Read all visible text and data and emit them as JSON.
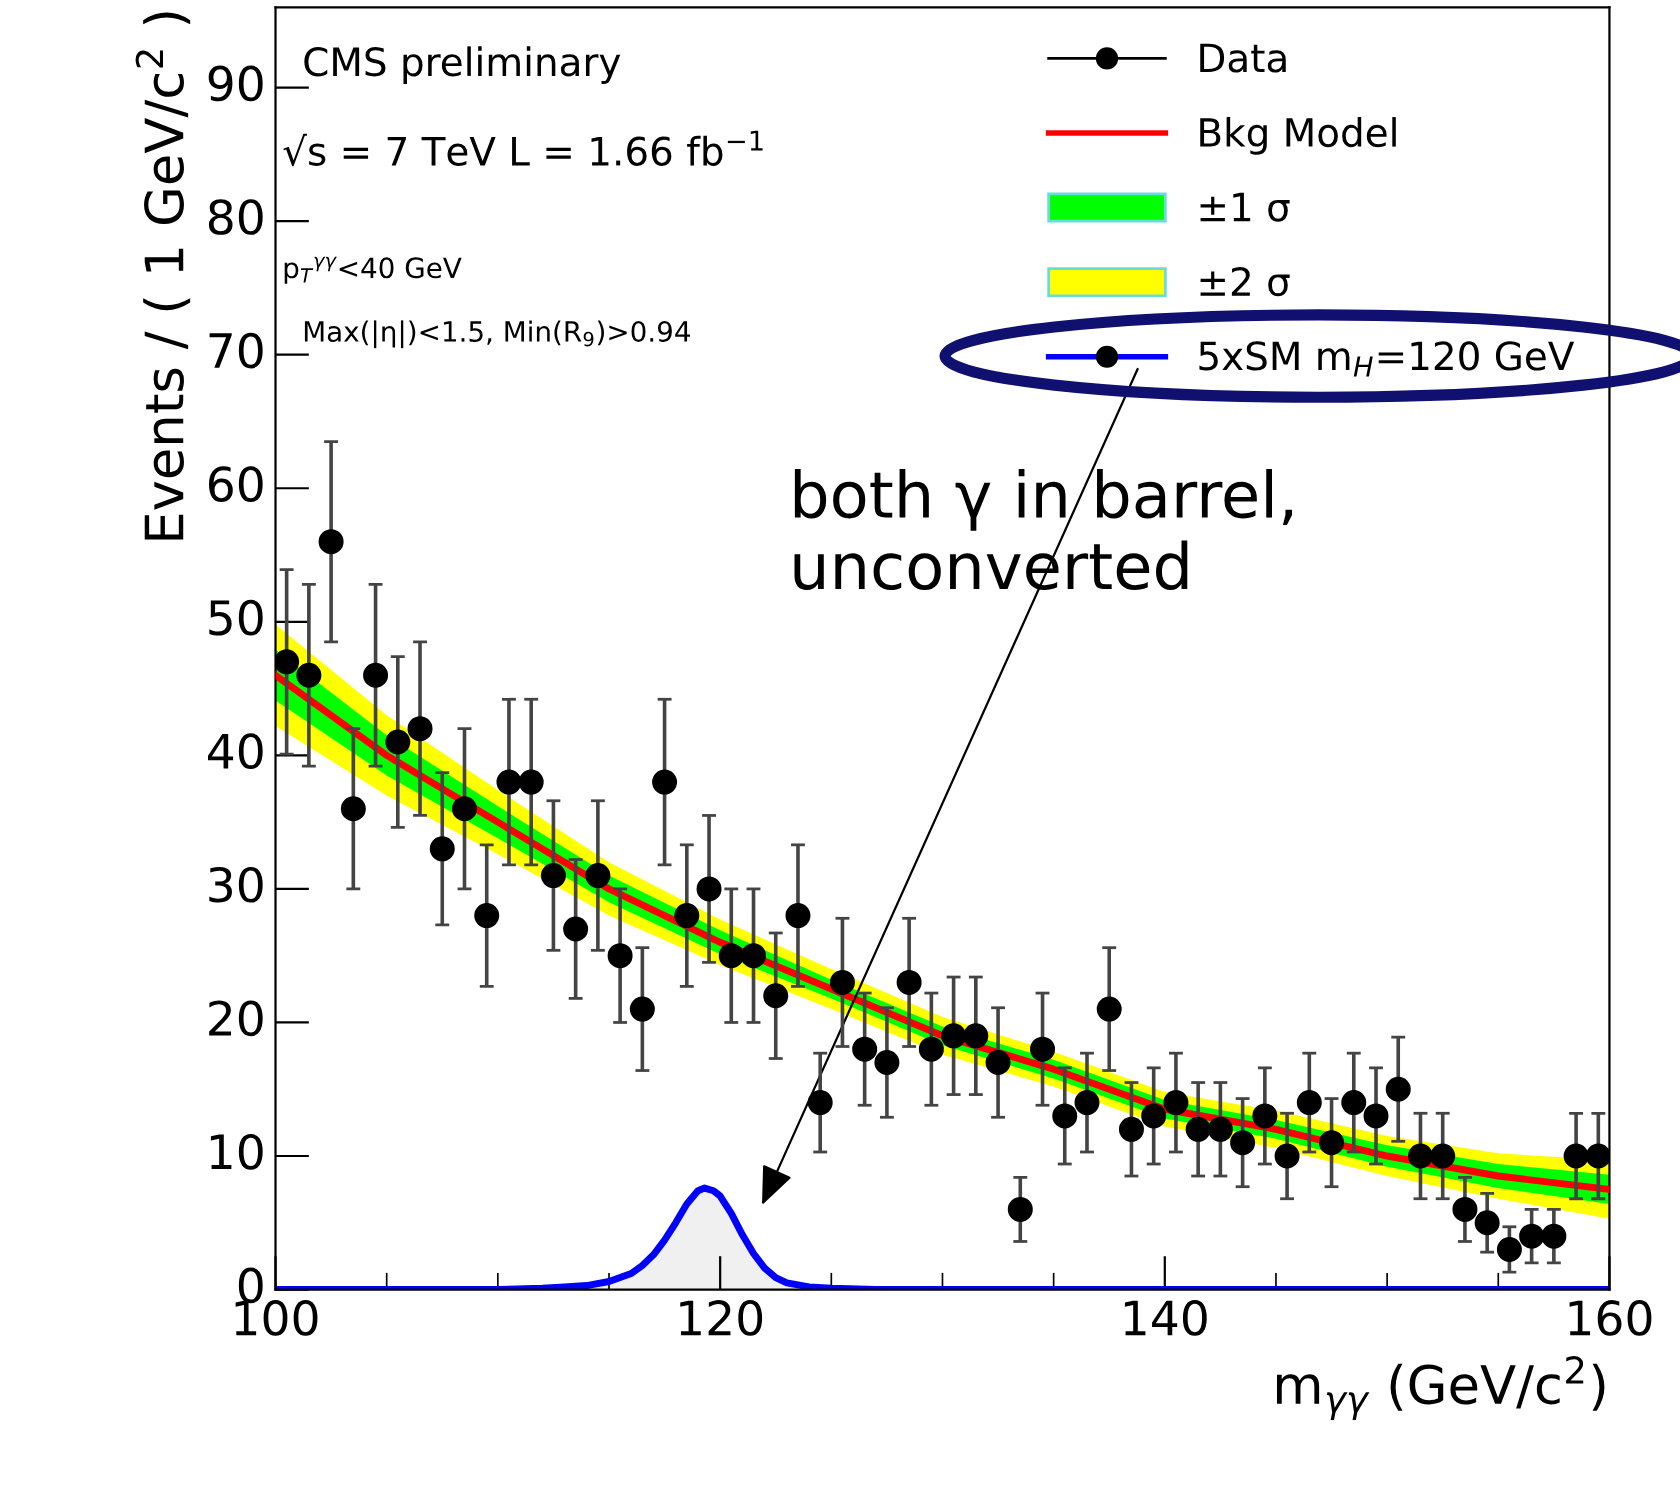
{
  "chart_data": {
    "type": "scatter",
    "xlabel": "m$_{γγ}$ (GeV/c$^{2}$)",
    "ylabel": "Events / ( 1 GeV/c$^{2}$ )",
    "xlim": [
      100,
      160
    ],
    "xticks": [
      100,
      120,
      140,
      160
    ],
    "ylim": [
      0,
      96
    ],
    "yticks": [
      0,
      10,
      20,
      30,
      40,
      50,
      60,
      70,
      80,
      90
    ],
    "grid": false,
    "legend": "top right",
    "series": [
      {
        "name": "±2 σ",
        "type": "line",
        "color": "#ffff00",
        "x": [
          100,
          105,
          110,
          115,
          120,
          125,
          130,
          135,
          140,
          145,
          150,
          155,
          160
        ],
        "values": [
          null,
          null,
          null,
          null,
          null,
          null,
          null,
          null,
          null,
          null,
          null,
          null,
          null
        ],
        "lower": [
          42.2,
          37.0,
          32.6,
          28.0,
          24.3,
          21.0,
          17.6,
          15.2,
          12.2,
          10.6,
          8.5,
          6.8,
          5.3
        ],
        "upper": [
          49.8,
          43.0,
          37.4,
          32.0,
          27.7,
          24.0,
          20.4,
          17.8,
          14.8,
          13.4,
          11.5,
          10.2,
          9.7
        ]
      },
      {
        "name": "±1 σ",
        "type": "line",
        "color": "#00ff00",
        "x": [
          100,
          105,
          110,
          115,
          120,
          125,
          130,
          135,
          140,
          145,
          150,
          155,
          160
        ],
        "values": [
          null,
          null,
          null,
          null,
          null,
          null,
          null,
          null,
          null,
          null,
          null,
          null,
          null
        ],
        "lower": [
          44.1,
          38.5,
          33.8,
          29.0,
          25.1,
          21.8,
          18.3,
          15.8,
          12.8,
          11.3,
          9.2,
          7.6,
          6.4
        ],
        "upper": [
          47.9,
          41.5,
          36.2,
          31.0,
          26.9,
          23.2,
          19.7,
          17.2,
          14.2,
          12.7,
          10.8,
          9.4,
          8.6
        ]
      },
      {
        "name": "Bkg Model",
        "type": "line",
        "color": "#ff0000",
        "marker": "none",
        "x": [
          100,
          105,
          110,
          115,
          120,
          125,
          130,
          135,
          140,
          145,
          150,
          155,
          160
        ],
        "values": [
          46,
          40,
          35,
          30,
          26,
          22.5,
          19,
          16.5,
          13.5,
          12,
          10,
          8.5,
          7.5
        ]
      },
      {
        "name": "5xSM m$_{H}$=120 GeV",
        "type": "area",
        "color": "#0000ff",
        "x": [
          100,
          110,
          112,
          113,
          114,
          115,
          116,
          116.5,
          117,
          117.5,
          118,
          118.5,
          119,
          119.3,
          119.7,
          120,
          120.5,
          121,
          121.5,
          122,
          122.5,
          123,
          124,
          125,
          127,
          160
        ],
        "values": [
          0,
          0,
          0.1,
          0.2,
          0.3,
          0.6,
          1.2,
          1.8,
          2.6,
          3.7,
          5.0,
          6.4,
          7.4,
          7.6,
          7.4,
          7.0,
          5.7,
          4.1,
          2.7,
          1.6,
          0.9,
          0.5,
          0.2,
          0.1,
          0,
          0
        ]
      },
      {
        "name": "Data",
        "color": "#000000",
        "marker": "circle",
        "x": [
          100.5,
          101.5,
          102.5,
          103.5,
          104.5,
          105.5,
          106.5,
          107.5,
          108.5,
          109.5,
          110.5,
          111.5,
          112.5,
          113.5,
          114.5,
          115.5,
          116.5,
          117.5,
          118.5,
          119.5,
          120.5,
          121.5,
          122.5,
          123.5,
          124.5,
          125.5,
          126.5,
          127.5,
          128.5,
          129.5,
          130.5,
          131.5,
          132.5,
          133.5,
          134.5,
          135.5,
          136.5,
          137.5,
          138.5,
          139.5,
          140.5,
          141.5,
          142.5,
          143.5,
          144.5,
          145.5,
          146.5,
          147.5,
          148.5,
          149.5,
          150.5,
          151.5,
          152.5,
          153.5,
          154.5,
          155.5,
          156.5,
          157.5,
          158.5,
          159.5
        ],
        "values": [
          47,
          46,
          56,
          36,
          46,
          41,
          42,
          33,
          36,
          28,
          38,
          38,
          31,
          27,
          31,
          25,
          21,
          38,
          28,
          30,
          25,
          25,
          22,
          28,
          14,
          23,
          18,
          17,
          23,
          18,
          19,
          19,
          17,
          6,
          18,
          13,
          14,
          21,
          12,
          13,
          14,
          12,
          12,
          11,
          13,
          10,
          14,
          11,
          14,
          13,
          15,
          10,
          10,
          6,
          5,
          3,
          4,
          4,
          10,
          10
        ],
        "errors": [
          6.9,
          6.8,
          7.5,
          6,
          6.8,
          6.4,
          6.5,
          5.7,
          6,
          5.3,
          6.2,
          6.2,
          5.6,
          5.2,
          5.6,
          5,
          4.6,
          6.2,
          5.3,
          5.5,
          5,
          5,
          4.7,
          5.3,
          3.7,
          4.8,
          4.2,
          4.1,
          4.8,
          4.2,
          4.4,
          4.4,
          4.1,
          2.4,
          4.2,
          3.6,
          3.7,
          4.6,
          3.5,
          3.6,
          3.7,
          3.5,
          3.5,
          3.3,
          3.6,
          3.2,
          3.7,
          3.3,
          3.7,
          3.6,
          3.9,
          3.2,
          3.2,
          2.4,
          2.2,
          1.7,
          2,
          2,
          3.2,
          3.2
        ]
      }
    ],
    "annotations": [
      "CMS preliminary",
      "√s = 7 TeV L = 1.66 fb$^{−1}$",
      "p$_{T}$$^{γγ}$<40 GeV",
      "Max(|η|)<1.5, Min(R$_{9}$)>0.94",
      "both γ in barrel, unconverted"
    ]
  }
}
